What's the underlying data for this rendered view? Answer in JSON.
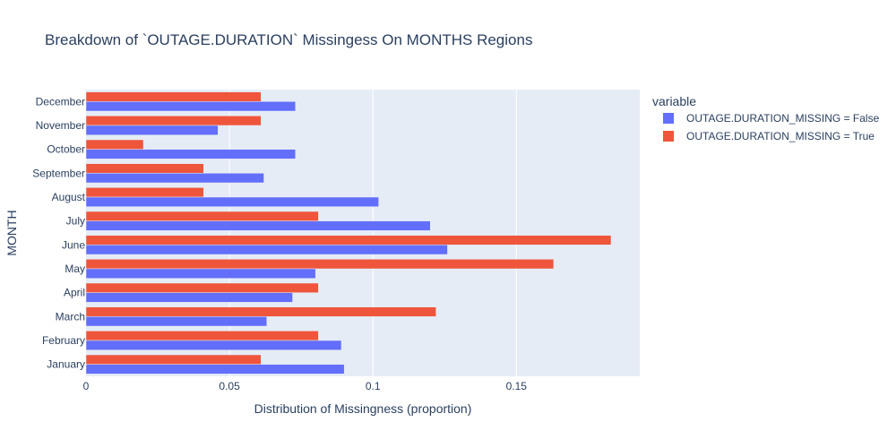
{
  "chart_data": {
    "type": "bar",
    "orientation": "horizontal",
    "barmode": "group",
    "title": "Breakdown of `OUTAGE.DURATION` Missingess On MONTHS Regions",
    "xlabel": "Distribution of Missingness (proportion)",
    "ylabel": "MONTH",
    "xlim": [
      0,
      0.193
    ],
    "xticks": [
      0,
      0.05,
      0.1,
      0.15
    ],
    "xtick_labels": [
      "0",
      "0.05",
      "0.1",
      "0.15"
    ],
    "grid": true,
    "legend": {
      "title": "variable",
      "placement": "top-right outside plot"
    },
    "categories": [
      "January",
      "February",
      "March",
      "April",
      "May",
      "June",
      "July",
      "August",
      "September",
      "October",
      "November",
      "December"
    ],
    "series": [
      {
        "name": "OUTAGE.DURATION_MISSING = False",
        "color": "#636efa",
        "values": [
          0.09,
          0.089,
          0.063,
          0.072,
          0.08,
          0.126,
          0.12,
          0.102,
          0.062,
          0.073,
          0.046,
          0.073
        ]
      },
      {
        "name": "OUTAGE.DURATION_MISSING = True",
        "color": "#ef553b",
        "values": [
          0.061,
          0.081,
          0.122,
          0.081,
          0.163,
          0.183,
          0.081,
          0.041,
          0.041,
          0.02,
          0.061,
          0.061
        ]
      }
    ],
    "colors": {
      "plot_background": "#e5ecf6",
      "gridline": "#ffffff",
      "text": "#2a3f5f"
    }
  }
}
